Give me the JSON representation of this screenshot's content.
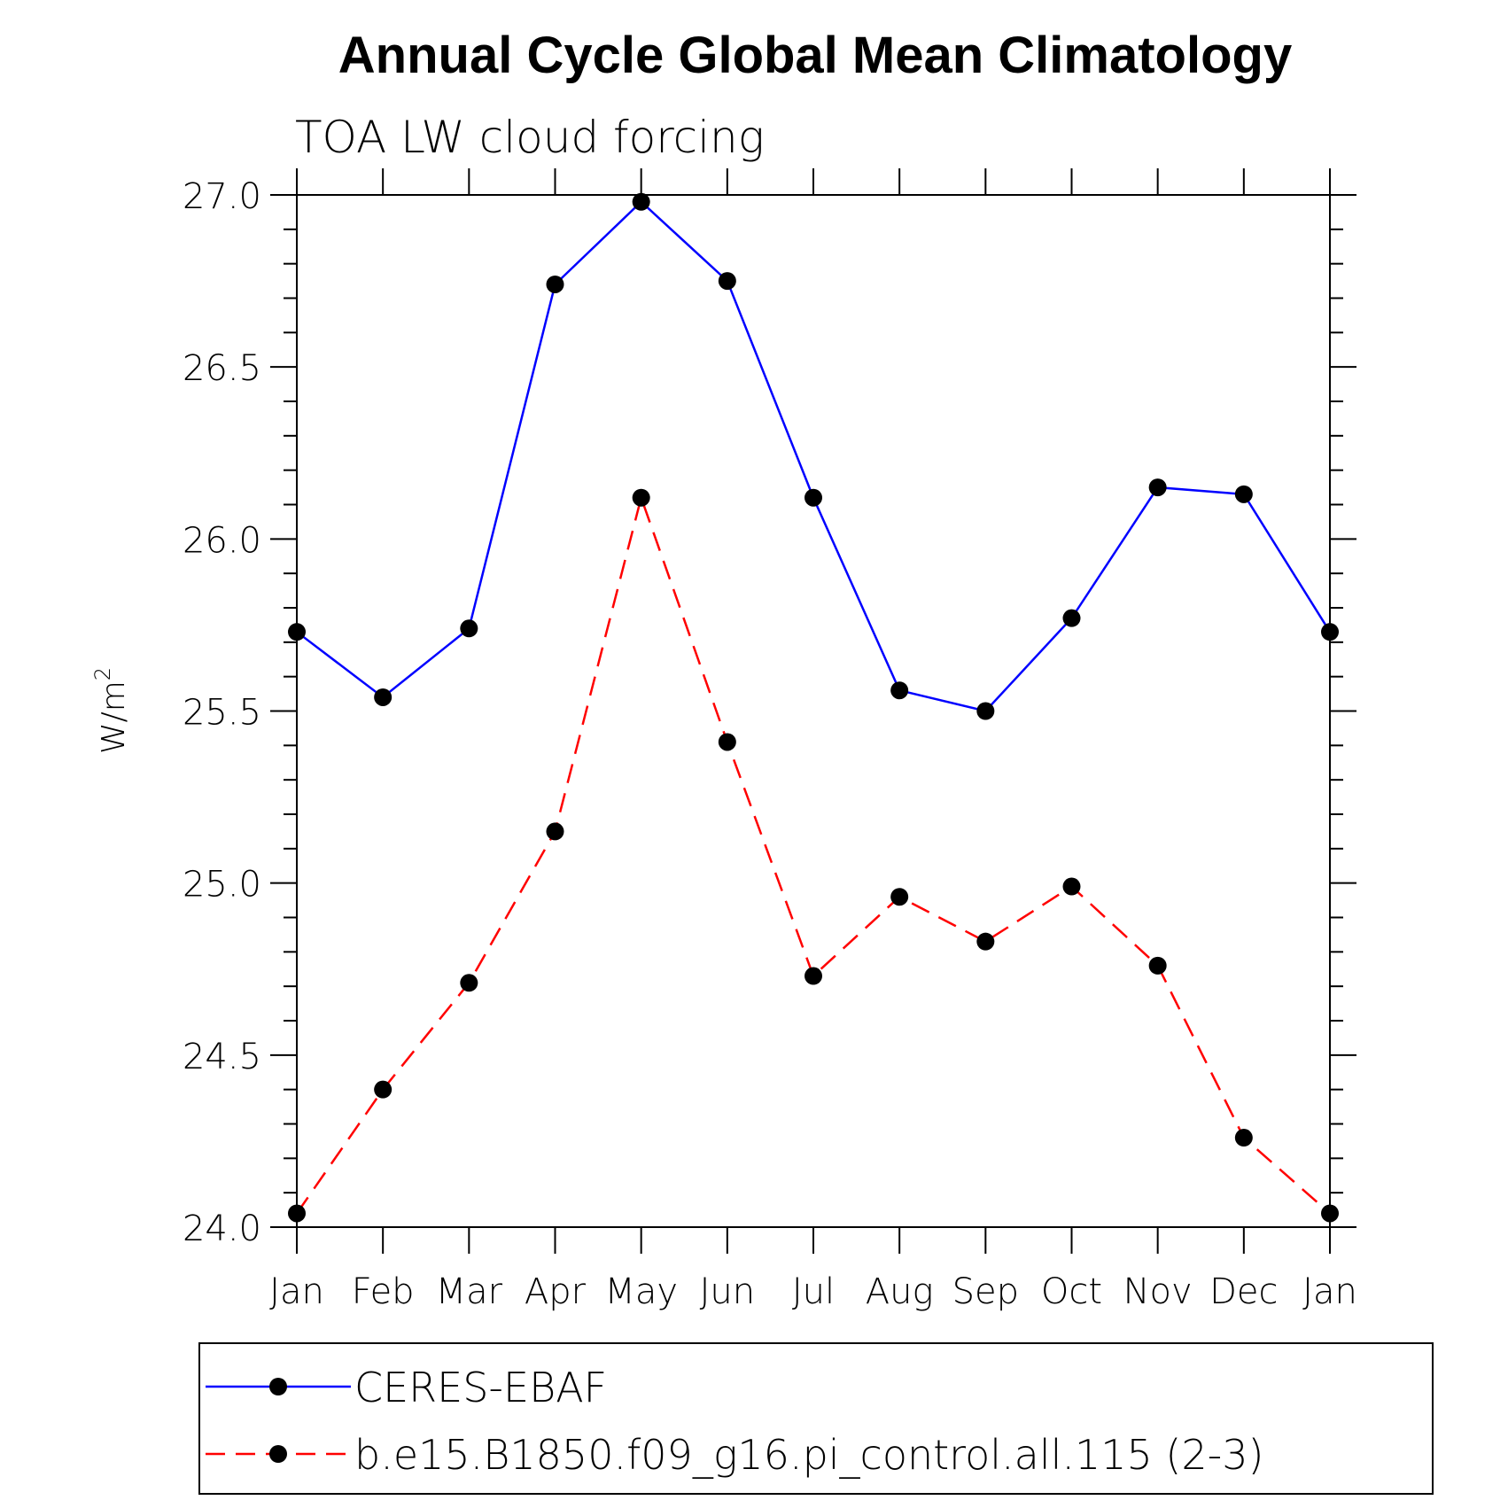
{
  "chart_data": {
    "type": "line",
    "title": "Annual Cycle Global Mean Climatology",
    "subtitle": "TOA LW cloud forcing",
    "ylabel": "W/m",
    "ylabel_superscript": "2",
    "ylim": [
      24.0,
      27.0
    ],
    "yticks": [
      "24.0",
      "24.5",
      "25.0",
      "25.5",
      "26.0",
      "26.5",
      "27.0"
    ],
    "categories": [
      "Jan",
      "Feb",
      "Mar",
      "Apr",
      "May",
      "Jun",
      "Jul",
      "Aug",
      "Sep",
      "Oct",
      "Nov",
      "Dec",
      "Jan"
    ],
    "grid": false,
    "legend_position": "bottom",
    "series": [
      {
        "name": "CERES-EBAF",
        "color": "#0000ff",
        "dash": "solid",
        "values": [
          25.73,
          25.54,
          25.74,
          26.74,
          26.98,
          26.75,
          26.12,
          25.56,
          25.5,
          25.77,
          26.15,
          26.13,
          25.73
        ]
      },
      {
        "name": "b.e15.B1850.f09_g16.pi_control.all.115 (2-3)",
        "color": "#ff0000",
        "dash": "dashed",
        "values": [
          24.04,
          24.4,
          24.71,
          25.15,
          26.12,
          25.41,
          24.73,
          24.96,
          24.83,
          24.99,
          24.76,
          24.26,
          24.04
        ]
      }
    ]
  }
}
